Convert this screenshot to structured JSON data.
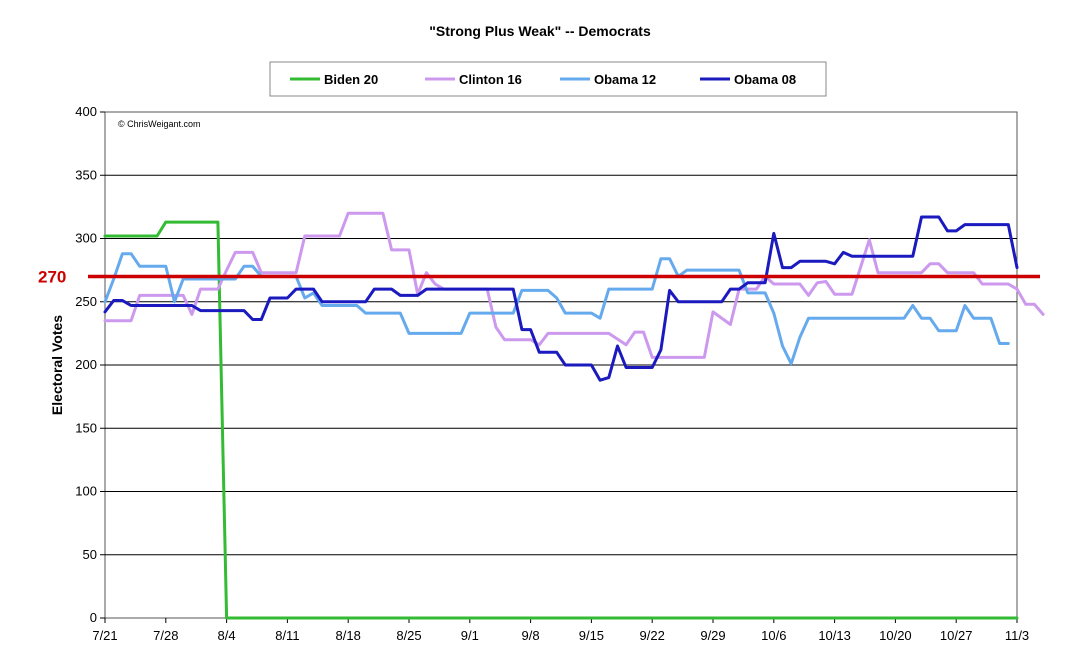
{
  "chart_data": {
    "type": "line",
    "title": "\"Strong Plus Weak\" -- Democrats",
    "xlabel": "",
    "ylabel": "Electoral Votes",
    "ylim": [
      0,
      400
    ],
    "yticks": [
      0,
      50,
      100,
      150,
      200,
      250,
      300,
      350,
      400
    ],
    "x_range_days": [
      0,
      105
    ],
    "x_ticks": [
      {
        "day": 0,
        "label": "7/21"
      },
      {
        "day": 7,
        "label": "7/28"
      },
      {
        "day": 14,
        "label": "8/4"
      },
      {
        "day": 21,
        "label": "8/11"
      },
      {
        "day": 28,
        "label": "8/18"
      },
      {
        "day": 35,
        "label": "8/25"
      },
      {
        "day": 42,
        "label": "9/1"
      },
      {
        "day": 49,
        "label": "9/8"
      },
      {
        "day": 56,
        "label": "9/15"
      },
      {
        "day": 63,
        "label": "9/22"
      },
      {
        "day": 70,
        "label": "9/29"
      },
      {
        "day": 77,
        "label": "10/6"
      },
      {
        "day": 84,
        "label": "10/13"
      },
      {
        "day": 91,
        "label": "10/20"
      },
      {
        "day": 98,
        "label": "10/27"
      },
      {
        "day": 105,
        "label": "11/3"
      }
    ],
    "grid": true,
    "legend_position": "top",
    "annotations": {
      "copyright": "© ChrisWeigant.com"
    },
    "reference_line": {
      "value": 270,
      "label": "270",
      "color": "#cc0000"
    },
    "series": [
      {
        "name": "Biden 20",
        "color": "#33bb33",
        "points": [
          [
            0,
            302
          ],
          [
            6,
            302
          ],
          [
            7,
            313
          ],
          [
            13,
            313
          ],
          [
            14,
            0
          ],
          [
            105,
            0
          ]
        ]
      },
      {
        "name": "Clinton 16",
        "color": "#cc99ee",
        "points": [
          [
            0,
            235
          ],
          [
            3,
            235
          ],
          [
            4,
            255
          ],
          [
            9,
            255
          ],
          [
            10,
            240
          ],
          [
            11,
            260
          ],
          [
            13,
            260
          ],
          [
            14,
            275
          ],
          [
            15,
            289
          ],
          [
            17,
            289
          ],
          [
            18,
            273
          ],
          [
            22,
            273
          ],
          [
            23,
            302
          ],
          [
            27,
            302
          ],
          [
            28,
            320
          ],
          [
            32,
            320
          ],
          [
            33,
            291
          ],
          [
            35,
            291
          ],
          [
            36,
            256
          ],
          [
            37,
            273
          ],
          [
            38,
            264
          ],
          [
            39,
            260
          ],
          [
            44,
            260
          ],
          [
            45,
            230
          ],
          [
            46,
            220
          ],
          [
            49,
            220
          ],
          [
            50,
            216
          ],
          [
            51,
            225
          ],
          [
            58,
            225
          ],
          [
            60,
            216
          ],
          [
            61,
            226
          ],
          [
            62,
            226
          ],
          [
            63,
            206
          ],
          [
            69,
            206
          ],
          [
            70,
            242
          ],
          [
            72,
            232
          ],
          [
            73,
            260
          ],
          [
            75,
            260
          ],
          [
            76,
            270
          ],
          [
            77,
            264
          ],
          [
            80,
            264
          ],
          [
            81,
            255
          ],
          [
            82,
            265
          ],
          [
            83,
            266
          ],
          [
            84,
            256
          ],
          [
            86,
            256
          ],
          [
            88,
            299
          ],
          [
            89,
            273
          ],
          [
            94,
            273
          ],
          [
            95,
            280
          ],
          [
            96,
            280
          ],
          [
            97,
            273
          ],
          [
            100,
            273
          ],
          [
            101,
            264
          ],
          [
            104,
            264
          ],
          [
            105,
            260
          ],
          [
            106,
            248
          ],
          [
            107,
            248
          ],
          [
            108,
            240
          ]
        ]
      },
      {
        "name": "Obama 12",
        "color": "#66aaee",
        "points": [
          [
            0,
            250
          ],
          [
            1,
            268
          ],
          [
            2,
            288
          ],
          [
            3,
            288
          ],
          [
            4,
            278
          ],
          [
            7,
            278
          ],
          [
            8,
            250
          ],
          [
            9,
            268
          ],
          [
            15,
            268
          ],
          [
            16,
            278
          ],
          [
            17,
            278
          ],
          [
            18,
            270
          ],
          [
            22,
            270
          ],
          [
            23,
            253
          ],
          [
            24,
            257
          ],
          [
            25,
            247
          ],
          [
            29,
            247
          ],
          [
            30,
            241
          ],
          [
            34,
            241
          ],
          [
            35,
            225
          ],
          [
            41,
            225
          ],
          [
            42,
            241
          ],
          [
            47,
            241
          ],
          [
            48,
            259
          ],
          [
            51,
            259
          ],
          [
            52,
            253
          ],
          [
            53,
            241
          ],
          [
            56,
            241
          ],
          [
            57,
            237
          ],
          [
            58,
            260
          ],
          [
            63,
            260
          ],
          [
            64,
            284
          ],
          [
            65,
            284
          ],
          [
            66,
            270
          ],
          [
            67,
            275
          ],
          [
            73,
            275
          ],
          [
            74,
            257
          ],
          [
            76,
            257
          ],
          [
            77,
            241
          ],
          [
            78,
            215
          ],
          [
            79,
            201
          ],
          [
            80,
            222
          ],
          [
            81,
            237
          ],
          [
            92,
            237
          ],
          [
            93,
            247
          ],
          [
            94,
            237
          ],
          [
            95,
            237
          ],
          [
            96,
            227
          ],
          [
            98,
            227
          ],
          [
            99,
            247
          ],
          [
            100,
            237
          ],
          [
            102,
            237
          ],
          [
            103,
            217
          ],
          [
            104,
            217
          ]
        ]
      },
      {
        "name": "Obama 08",
        "color": "#1a1abf",
        "points": [
          [
            0,
            242
          ],
          [
            1,
            251
          ],
          [
            2,
            251
          ],
          [
            3,
            247
          ],
          [
            10,
            247
          ],
          [
            11,
            243
          ],
          [
            16,
            243
          ],
          [
            17,
            236
          ],
          [
            18,
            236
          ],
          [
            19,
            253
          ],
          [
            21,
            253
          ],
          [
            22,
            260
          ],
          [
            24,
            260
          ],
          [
            25,
            250
          ],
          [
            30,
            250
          ],
          [
            31,
            260
          ],
          [
            33,
            260
          ],
          [
            34,
            255
          ],
          [
            36,
            255
          ],
          [
            37,
            260
          ],
          [
            47,
            260
          ],
          [
            48,
            228
          ],
          [
            49,
            228
          ],
          [
            50,
            210
          ],
          [
            52,
            210
          ],
          [
            53,
            200
          ],
          [
            56,
            200
          ],
          [
            57,
            188
          ],
          [
            58,
            190
          ],
          [
            59,
            215
          ],
          [
            60,
            198
          ],
          [
            63,
            198
          ],
          [
            64,
            212
          ],
          [
            65,
            259
          ],
          [
            66,
            250
          ],
          [
            71,
            250
          ],
          [
            72,
            260
          ],
          [
            73,
            260
          ],
          [
            74,
            265
          ],
          [
            76,
            265
          ],
          [
            77,
            304
          ],
          [
            78,
            277
          ],
          [
            79,
            277
          ],
          [
            80,
            282
          ],
          [
            83,
            282
          ],
          [
            84,
            280
          ],
          [
            85,
            289
          ],
          [
            86,
            286
          ],
          [
            93,
            286
          ],
          [
            94,
            317
          ],
          [
            96,
            317
          ],
          [
            97,
            306
          ],
          [
            98,
            306
          ],
          [
            99,
            311
          ],
          [
            104,
            311
          ],
          [
            105,
            277
          ]
        ]
      }
    ]
  }
}
